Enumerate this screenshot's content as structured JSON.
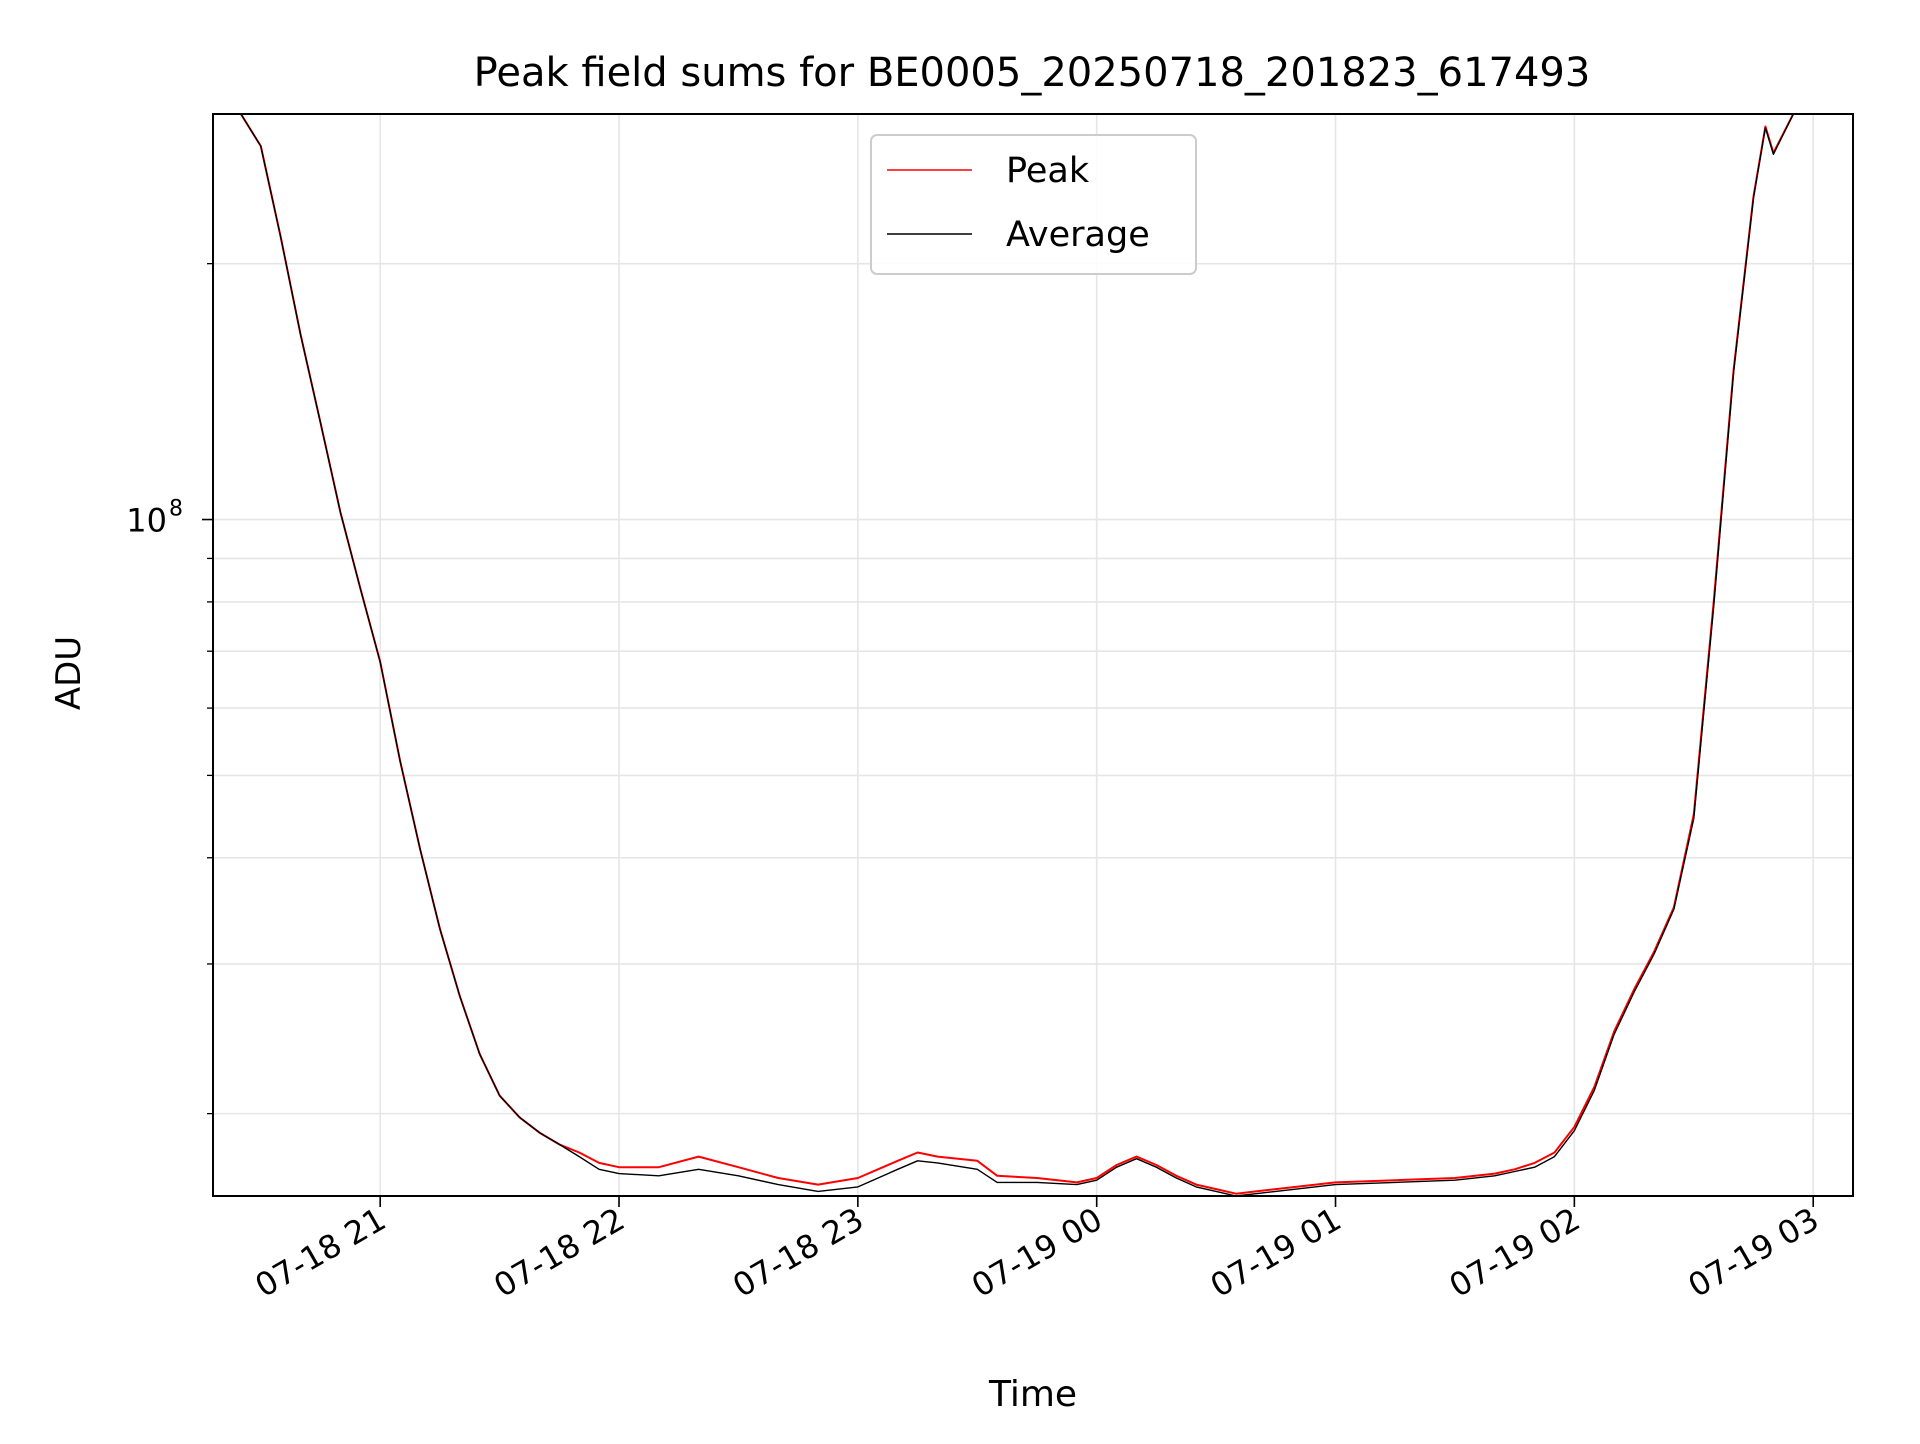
{
  "chart_data": {
    "type": "line",
    "title": "Peak field sums for BE0005_20250718_201823_617493",
    "xlabel": "Time",
    "ylabel": "ADU",
    "y_scale": "log",
    "grid": true,
    "legend_placement": "top-center",
    "x_tick_labels": [
      "07-18 21",
      "07-18 22",
      "07-18 23",
      "07-19 00",
      "07-19 01",
      "07-19 02",
      "07-19 03"
    ],
    "x_ticks": [
      "2025-07-18 21:00",
      "2025-07-18 22:00",
      "2025-07-18 23:00",
      "2025-07-19 00:00",
      "2025-07-19 01:00",
      "2025-07-19 02:00",
      "2025-07-19 03:00"
    ],
    "xlim": [
      "2025-07-18 20:18",
      "2025-07-19 03:10"
    ],
    "y_tick_major": {
      "value": 100000000,
      "label_base": "10",
      "label_exp": "8"
    },
    "y_ticks_minor": [
      20000000,
      30000000,
      40000000,
      50000000,
      60000000,
      70000000,
      80000000,
      90000000,
      200000000
    ],
    "ylim": [
      16000000,
      300000000
    ],
    "series": [
      {
        "name": "Peak",
        "color": "#ff0000",
        "x": [
          "2025-07-18 20:18",
          "2025-07-18 20:25",
          "2025-07-18 20:30",
          "2025-07-18 20:35",
          "2025-07-18 20:40",
          "2025-07-18 20:45",
          "2025-07-18 20:50",
          "2025-07-18 20:55",
          "2025-07-18 21:00",
          "2025-07-18 21:05",
          "2025-07-18 21:10",
          "2025-07-18 21:15",
          "2025-07-18 21:20",
          "2025-07-18 21:25",
          "2025-07-18 21:30",
          "2025-07-18 21:35",
          "2025-07-18 21:40",
          "2025-07-18 21:45",
          "2025-07-18 21:50",
          "2025-07-18 21:55",
          "2025-07-18 22:00",
          "2025-07-18 22:10",
          "2025-07-18 22:20",
          "2025-07-18 22:30",
          "2025-07-18 22:40",
          "2025-07-18 22:50",
          "2025-07-18 23:00",
          "2025-07-18 23:10",
          "2025-07-18 23:15",
          "2025-07-18 23:20",
          "2025-07-18 23:30",
          "2025-07-18 23:35",
          "2025-07-18 23:45",
          "2025-07-18 23:55",
          "2025-07-19 00:00",
          "2025-07-19 00:05",
          "2025-07-19 00:10",
          "2025-07-19 00:15",
          "2025-07-19 00:20",
          "2025-07-19 00:25",
          "2025-07-19 00:30",
          "2025-07-19 00:35",
          "2025-07-19 00:40",
          "2025-07-19 00:45",
          "2025-07-19 01:00",
          "2025-07-19 01:15",
          "2025-07-19 01:30",
          "2025-07-19 01:40",
          "2025-07-19 01:45",
          "2025-07-19 01:50",
          "2025-07-19 01:55",
          "2025-07-19 02:00",
          "2025-07-19 02:05",
          "2025-07-19 02:10",
          "2025-07-19 02:15",
          "2025-07-19 02:20",
          "2025-07-19 02:25",
          "2025-07-19 02:30",
          "2025-07-19 02:35",
          "2025-07-19 02:40",
          "2025-07-19 02:45",
          "2025-07-19 02:48",
          "2025-07-19 02:50",
          "2025-07-19 02:55"
        ],
        "y": [
          300000000,
          300000000,
          275000000,
          215000000,
          165000000,
          130000000,
          102000000,
          83000000,
          68000000,
          52000000,
          41000000,
          33000000,
          27500000,
          23500000,
          21000000,
          19800000,
          19000000,
          18400000,
          18000000,
          17500000,
          17300000,
          17300000,
          17800000,
          17300000,
          16800000,
          16500000,
          16800000,
          17600000,
          18000000,
          17800000,
          17600000,
          16900000,
          16800000,
          16600000,
          16800000,
          17400000,
          17800000,
          17400000,
          16900000,
          16500000,
          16300000,
          16100000,
          16200000,
          16300000,
          16600000,
          16700000,
          16800000,
          17000000,
          17200000,
          17500000,
          18000000,
          19300000,
          21500000,
          25000000,
          28000000,
          31000000,
          35000000,
          45000000,
          80000000,
          150000000,
          240000000,
          290000000,
          270000000,
          300000000
        ]
      },
      {
        "name": "Average",
        "color": "#000000",
        "x": [
          "2025-07-18 20:18",
          "2025-07-18 20:25",
          "2025-07-18 20:30",
          "2025-07-18 20:35",
          "2025-07-18 20:40",
          "2025-07-18 20:45",
          "2025-07-18 20:50",
          "2025-07-18 20:55",
          "2025-07-18 21:00",
          "2025-07-18 21:05",
          "2025-07-18 21:10",
          "2025-07-18 21:15",
          "2025-07-18 21:20",
          "2025-07-18 21:25",
          "2025-07-18 21:30",
          "2025-07-18 21:35",
          "2025-07-18 21:40",
          "2025-07-18 21:45",
          "2025-07-18 21:50",
          "2025-07-18 21:55",
          "2025-07-18 22:00",
          "2025-07-18 22:10",
          "2025-07-18 22:20",
          "2025-07-18 22:30",
          "2025-07-18 22:40",
          "2025-07-18 22:50",
          "2025-07-18 23:00",
          "2025-07-18 23:10",
          "2025-07-18 23:15",
          "2025-07-18 23:20",
          "2025-07-18 23:30",
          "2025-07-18 23:35",
          "2025-07-18 23:45",
          "2025-07-18 23:55",
          "2025-07-19 00:00",
          "2025-07-19 00:05",
          "2025-07-19 00:10",
          "2025-07-19 00:15",
          "2025-07-19 00:20",
          "2025-07-19 00:25",
          "2025-07-19 00:30",
          "2025-07-19 00:35",
          "2025-07-19 00:40",
          "2025-07-19 00:45",
          "2025-07-19 01:00",
          "2025-07-19 01:15",
          "2025-07-19 01:30",
          "2025-07-19 01:40",
          "2025-07-19 01:45",
          "2025-07-19 01:50",
          "2025-07-19 01:55",
          "2025-07-19 02:00",
          "2025-07-19 02:05",
          "2025-07-19 02:10",
          "2025-07-19 02:15",
          "2025-07-19 02:20",
          "2025-07-19 02:25",
          "2025-07-19 02:30",
          "2025-07-19 02:35",
          "2025-07-19 02:40",
          "2025-07-19 02:45",
          "2025-07-19 02:48",
          "2025-07-19 02:50",
          "2025-07-19 02:55"
        ],
        "y": [
          300000000,
          300000000,
          275000000,
          215000000,
          165000000,
          130000000,
          102000000,
          83000000,
          68000000,
          52000000,
          41000000,
          33000000,
          27500000,
          23500000,
          21000000,
          19800000,
          19000000,
          18400000,
          17800000,
          17200000,
          17000000,
          16900000,
          17200000,
          16900000,
          16500000,
          16200000,
          16400000,
          17200000,
          17600000,
          17500000,
          17200000,
          16600000,
          16600000,
          16500000,
          16700000,
          17300000,
          17700000,
          17300000,
          16800000,
          16400000,
          16200000,
          16000000,
          16100000,
          16200000,
          16500000,
          16600000,
          16700000,
          16900000,
          17100000,
          17300000,
          17800000,
          19100000,
          21300000,
          24800000,
          27800000,
          30800000,
          34800000,
          44500000,
          79000000,
          149000000,
          239000000,
          289000000,
          269000000,
          300000000
        ]
      }
    ]
  }
}
